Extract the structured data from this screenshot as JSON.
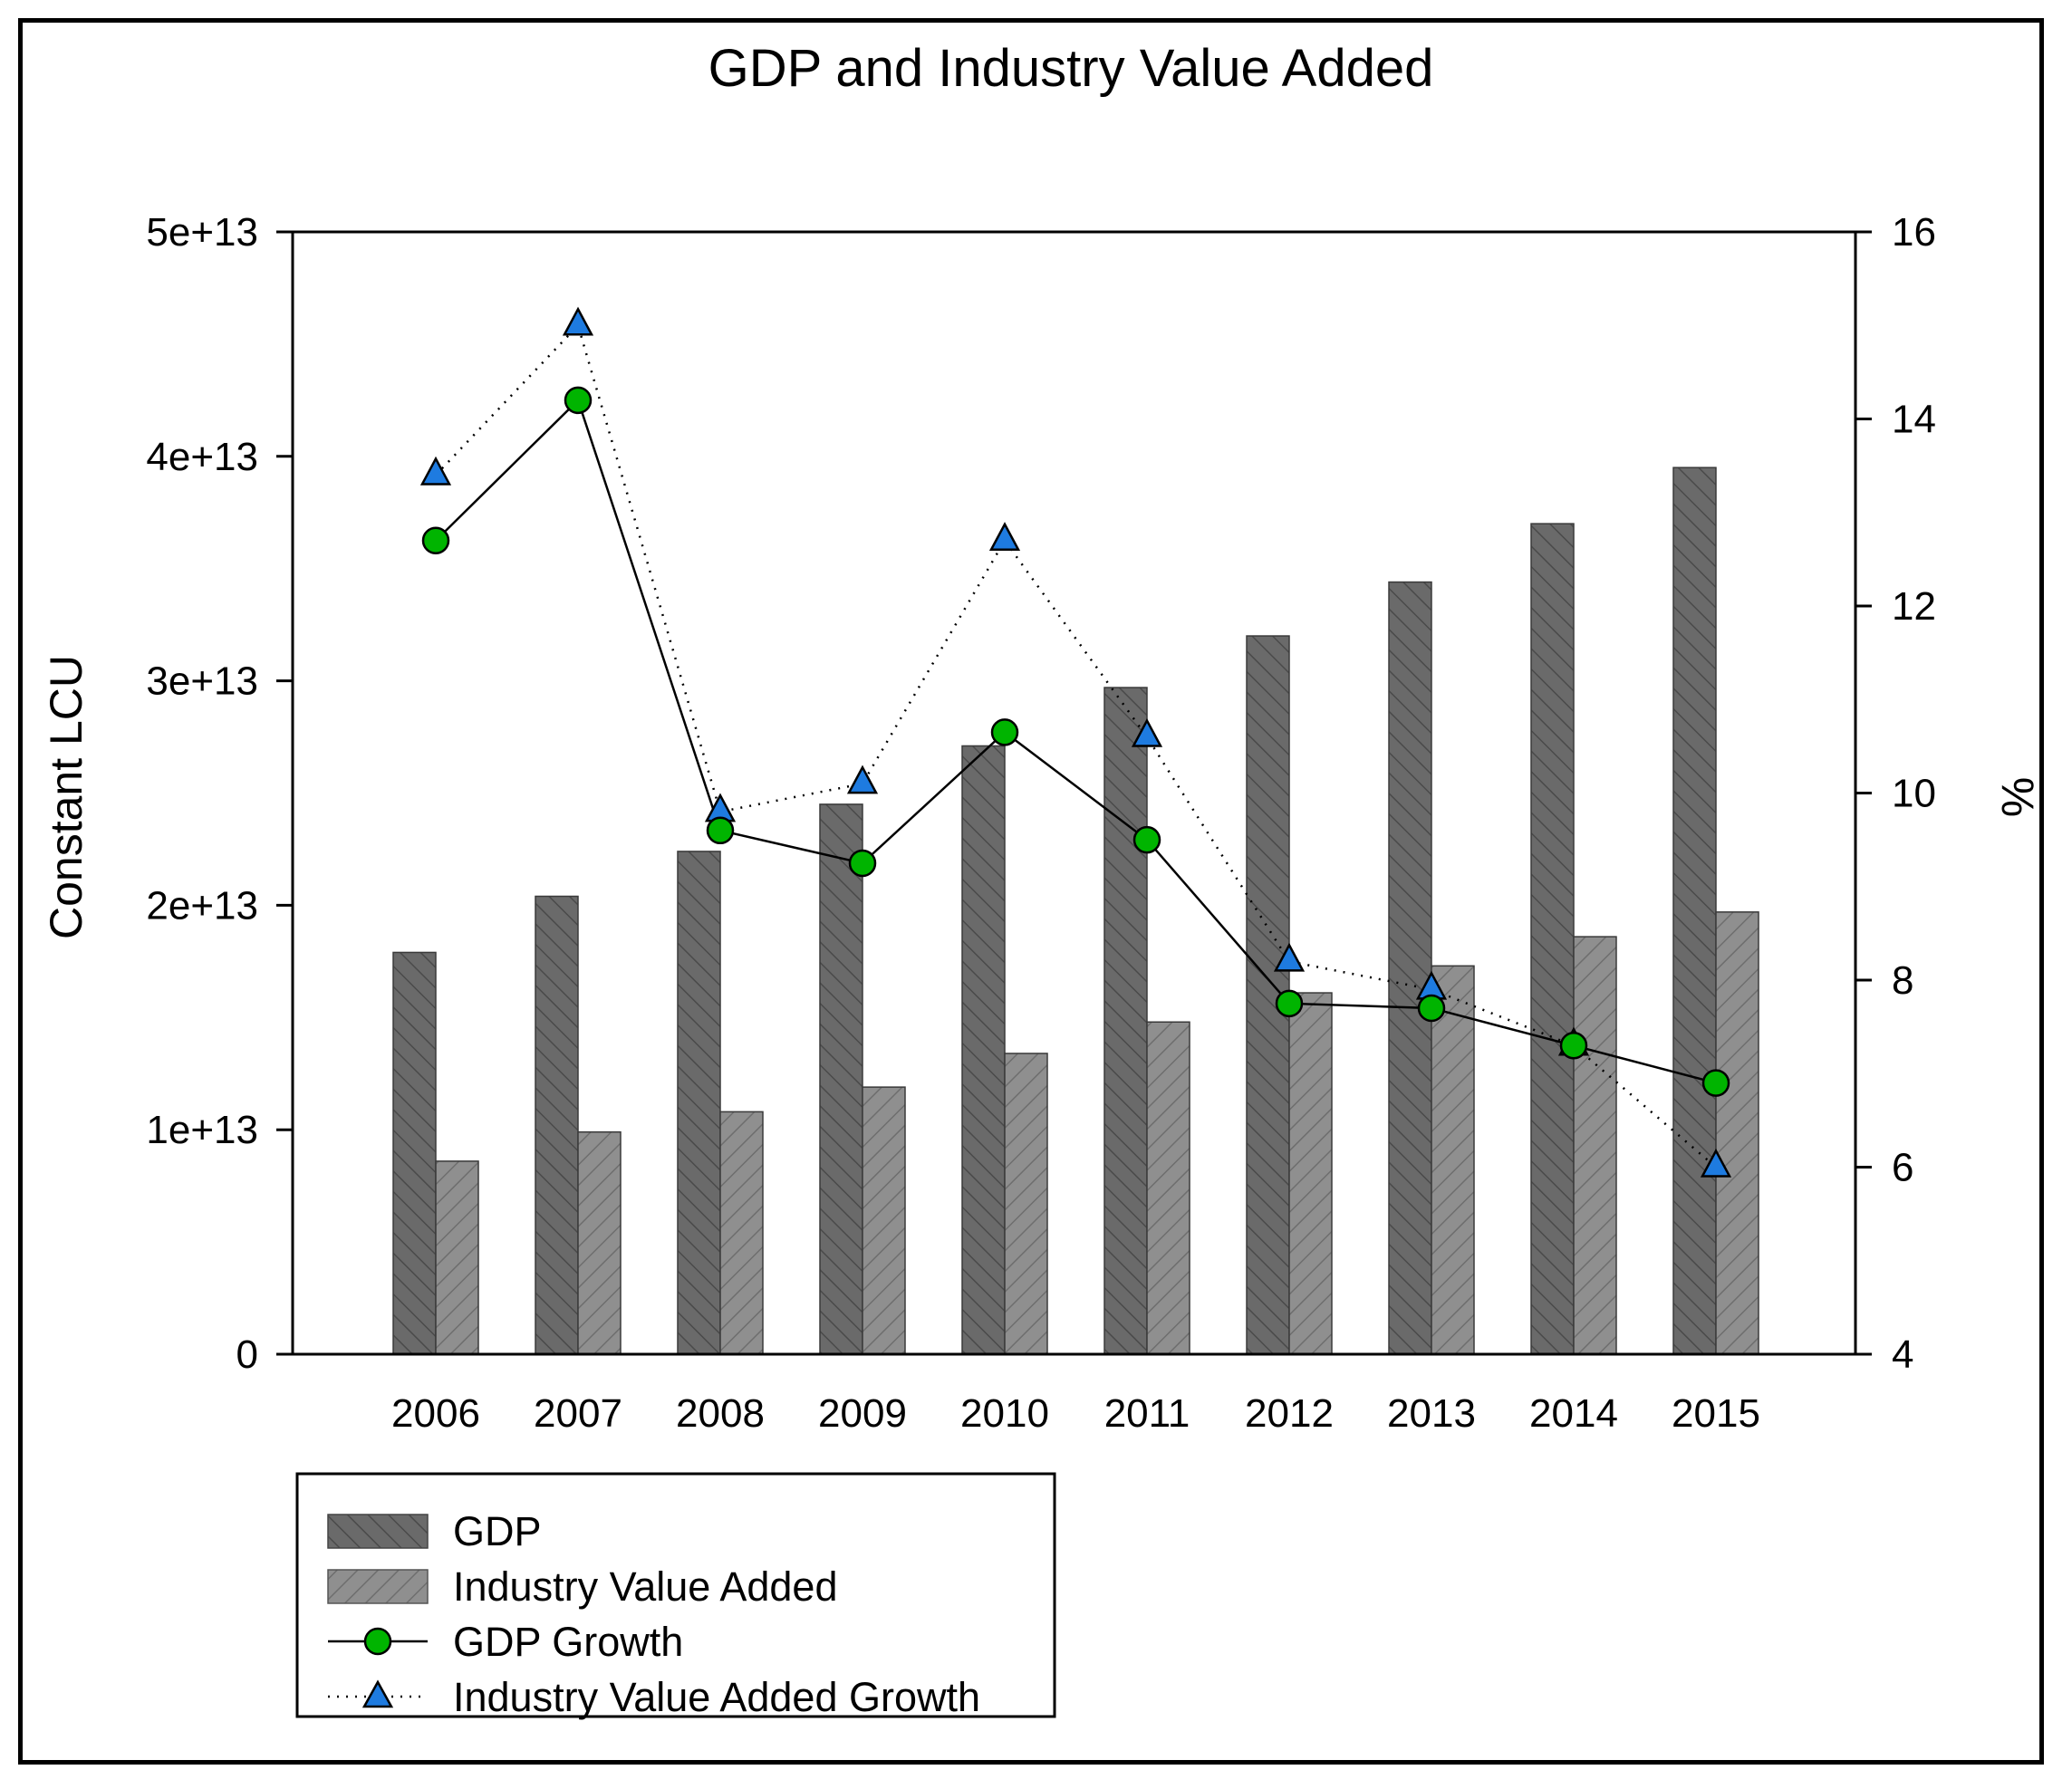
{
  "chart_data": {
    "type": "bar+line",
    "title": "GDP and Industry Value Added",
    "categories": [
      "2006",
      "2007",
      "2008",
      "2009",
      "2010",
      "2011",
      "2012",
      "2013",
      "2014",
      "2015"
    ],
    "bar_series": [
      {
        "name": "GDP",
        "values": [
          17900000000000.0,
          20400000000000.0,
          22400000000000.0,
          24500000000000.0,
          27100000000000.0,
          29700000000000.0,
          32000000000000.0,
          34400000000000.0,
          37000000000000.0,
          39500000000000.0
        ],
        "color": "#6a6a6a"
      },
      {
        "name": "Industry Value Added",
        "values": [
          8600000000000.0,
          9900000000000.0,
          10800000000000.0,
          11900000000000.0,
          13400000000000.0,
          14800000000000.0,
          16100000000000.0,
          17300000000000.0,
          18600000000000.0,
          19700000000000.0
        ],
        "color": "#8f8f8f"
      }
    ],
    "line_series": [
      {
        "name": "GDP Growth",
        "values": [
          12.7,
          14.2,
          9.6,
          9.25,
          10.65,
          9.5,
          7.75,
          7.7,
          7.3,
          6.9
        ],
        "marker": "circle",
        "color": "#00b400",
        "line": "solid"
      },
      {
        "name": "Industry Value Added Growth",
        "values": [
          13.4,
          15.0,
          9.8,
          10.1,
          12.7,
          10.6,
          8.2,
          7.9,
          7.3,
          6.0
        ],
        "marker": "triangle",
        "color": "#1e7be0",
        "line": "dotted"
      }
    ],
    "ylabel_left": "Constant LCU",
    "ylabel_right": "%",
    "ylim_left": [
      0,
      50000000000000.0
    ],
    "ylim_right": [
      4,
      16
    ],
    "yticks_left": [
      "0",
      "1e+13",
      "2e+13",
      "3e+13",
      "4e+13",
      "5e+13"
    ],
    "yticks_right": [
      "4",
      "6",
      "8",
      "10",
      "12",
      "14",
      "16"
    ],
    "legend_position": "bottom-left",
    "legend": [
      "GDP",
      "Industry Value Added",
      "GDP Growth",
      "Industry Value Added Growth"
    ]
  }
}
